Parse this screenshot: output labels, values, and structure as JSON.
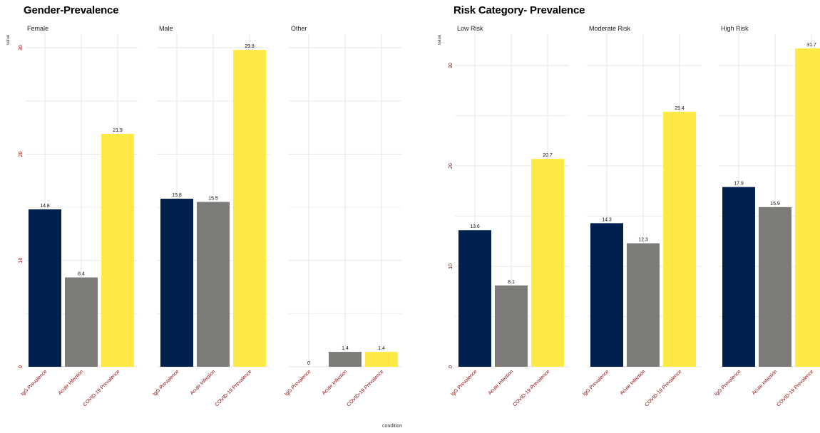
{
  "chart_data": [
    {
      "type": "bar",
      "title": "Gender-Prevalence",
      "ylabel": "value",
      "xlabel": "",
      "ylim": [
        0,
        30
      ],
      "yticks": [
        0,
        10,
        20,
        30
      ],
      "grid": true,
      "categories": [
        "IgG Prevalence",
        "Acute Infection",
        "COVID-19 Prevalence"
      ],
      "colors": [
        "#00204d",
        "#7c7b78",
        "#ffe945"
      ],
      "facets": [
        {
          "name": "Female",
          "values": [
            14.8,
            8.4,
            21.9
          ],
          "labels": [
            "14.8",
            "8.4",
            "21.9"
          ]
        },
        {
          "name": "Male",
          "values": [
            15.8,
            15.5,
            29.8
          ],
          "labels": [
            "15.8",
            "15.5",
            "29.8"
          ]
        },
        {
          "name": "Other",
          "values": [
            0,
            1.4,
            1.4
          ],
          "labels": [
            "0",
            "1.4",
            "1.4"
          ]
        }
      ]
    },
    {
      "type": "bar",
      "title": "Risk Category- Prevalence",
      "ylabel": "value",
      "xlabel": "condition",
      "ylim": [
        0,
        32
      ],
      "yticks": [
        0,
        10,
        20,
        30
      ],
      "grid": true,
      "categories": [
        "IgG Prevalence",
        "Acute Infection",
        "COVID-19 Prevalence"
      ],
      "colors": [
        "#00204d",
        "#7c7b78",
        "#ffe945"
      ],
      "facets": [
        {
          "name": "Low Risk",
          "values": [
            13.6,
            8.1,
            20.7
          ],
          "labels": [
            "13.6",
            "8.1",
            "20.7"
          ]
        },
        {
          "name": "Moderate Risk",
          "values": [
            14.3,
            12.3,
            25.4
          ],
          "labels": [
            "14.3",
            "12.3",
            "25.4"
          ]
        },
        {
          "name": "High Risk",
          "values": [
            17.9,
            15.9,
            31.7
          ],
          "labels": [
            "17.9",
            "15.9",
            "31.7"
          ]
        }
      ]
    }
  ]
}
